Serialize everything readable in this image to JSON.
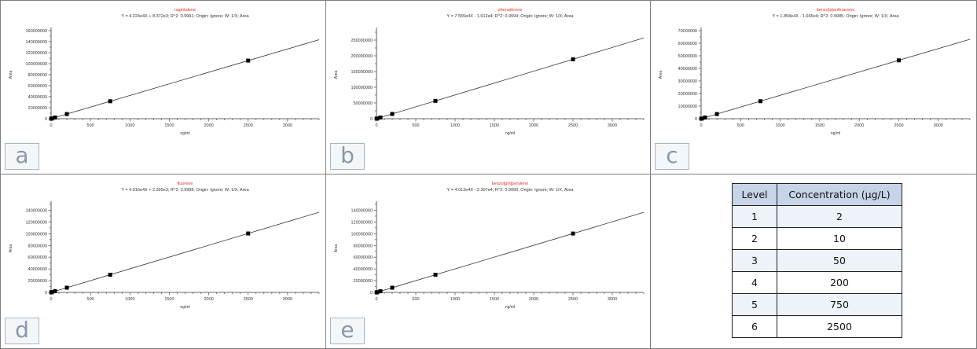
{
  "chart_data": [
    {
      "type": "scatter",
      "panel_letter": "a",
      "title": "naphtalene",
      "equation": "Y = 4.224e4X + 8.372e3; R^2: 0.9991; Origin: Ignore; W: 1/X; Area",
      "xlabel": "ng/ml",
      "ylabel": "Area",
      "xlim": [
        0,
        3400
      ],
      "ylim": [
        0,
        160000000
      ],
      "x_ticks": [
        0,
        500,
        1000,
        1500,
        2000,
        2500,
        3000
      ],
      "y_ticks": [
        0,
        20000000,
        40000000,
        60000000,
        80000000,
        100000000,
        120000000,
        140000000,
        160000000
      ],
      "y_tick_labels": [
        "0",
        "20000000",
        "40000000",
        "60000000",
        "80000000",
        "100000000",
        "120000000",
        "140000000",
        "160000000"
      ],
      "fit": {
        "slope": 42240,
        "intercept": 8372
      },
      "points": [
        [
          2,
          100000
        ],
        [
          10,
          430000
        ],
        [
          50,
          2120000
        ],
        [
          200,
          8450000
        ],
        [
          750,
          31700000
        ],
        [
          2500,
          105600000
        ]
      ]
    },
    {
      "type": "scatter",
      "panel_letter": "b",
      "title": "phenathrene",
      "equation": "Y = 7.555e4X - 1.612e4; R^2: 0.9994; Origin: Ignore; W: 1/X; Area",
      "xlabel": "ng/ml",
      "ylabel": "Area",
      "xlim": [
        0,
        3400
      ],
      "ylim": [
        0,
        280000000
      ],
      "x_ticks": [
        0,
        500,
        1000,
        1500,
        2000,
        2500,
        3000
      ],
      "y_ticks": [
        0,
        50000000,
        100000000,
        150000000,
        200000000,
        250000000
      ],
      "y_tick_labels": [
        "0",
        "50000000",
        "100000000",
        "150000000",
        "200000000",
        "250000000"
      ],
      "fit": {
        "slope": 75550,
        "intercept": -16120
      },
      "points": [
        [
          2,
          135000
        ],
        [
          10,
          740000
        ],
        [
          50,
          3760000
        ],
        [
          200,
          15100000
        ],
        [
          750,
          56600000
        ],
        [
          2500,
          188900000
        ]
      ]
    },
    {
      "type": "scatter",
      "panel_letter": "c",
      "title": "benzo[a]anthracene",
      "equation": "Y = 1.858e4X - 1.665e4; R^2: 0.9985; Origin: Ignore; W: 1/X; Area",
      "xlabel": "ng/ml",
      "ylabel": "Area",
      "xlim": [
        0,
        3400
      ],
      "ylim": [
        0,
        70000000
      ],
      "x_ticks": [
        0,
        500,
        1000,
        1500,
        2000,
        2500,
        3000
      ],
      "y_ticks": [
        0,
        10000000,
        20000000,
        30000000,
        40000000,
        50000000,
        60000000,
        70000000
      ],
      "y_tick_labels": [
        "0",
        "10000000",
        "20000000",
        "30000000",
        "40000000",
        "50000000",
        "60000000",
        "70000000"
      ],
      "fit": {
        "slope": 18580,
        "intercept": -16650
      },
      "points": [
        [
          2,
          20000
        ],
        [
          10,
          169000
        ],
        [
          50,
          912000
        ],
        [
          200,
          3700000
        ],
        [
          750,
          13900000
        ],
        [
          2500,
          46400000
        ]
      ]
    },
    {
      "type": "scatter",
      "panel_letter": "d",
      "title": "fluorene",
      "equation": "Y = 4.016e4X + 2.395e3; R^2: 0.9998; Origin: Ignore; W: 1/X; Area",
      "xlabel": "ng/ml",
      "ylabel": "Area",
      "xlim": [
        0,
        3400
      ],
      "ylim": [
        0,
        150000000
      ],
      "x_ticks": [
        0,
        500,
        1000,
        1500,
        2000,
        2500,
        3000
      ],
      "y_ticks": [
        0,
        20000000,
        40000000,
        60000000,
        80000000,
        100000000,
        120000000,
        140000000
      ],
      "y_tick_labels": [
        "0",
        "20000000",
        "40000000",
        "60000000",
        "80000000",
        "100000000",
        "120000000",
        "140000000"
      ],
      "fit": {
        "slope": 40160,
        "intercept": 2395
      },
      "points": [
        [
          2,
          83000
        ],
        [
          10,
          404000
        ],
        [
          50,
          2010000
        ],
        [
          200,
          8030000
        ],
        [
          750,
          30100000
        ],
        [
          2500,
          100400000
        ]
      ]
    },
    {
      "type": "scatter",
      "panel_letter": "e",
      "title": "benzo[ghi]perylene",
      "equation": "Y = 4.012e4X - 2.307e4; R^2: 0.9993; Origin: Ignore; W: 1/X; Area",
      "xlabel": "ng/ml",
      "ylabel": "Area",
      "xlim": [
        0,
        3400
      ],
      "ylim": [
        0,
        150000000
      ],
      "x_ticks": [
        0,
        500,
        1000,
        1500,
        2000,
        2500,
        3000
      ],
      "y_ticks": [
        0,
        20000000,
        40000000,
        60000000,
        80000000,
        100000000,
        120000000,
        140000000
      ],
      "y_tick_labels": [
        "0",
        "20000000",
        "40000000",
        "60000000",
        "80000000",
        "100000000",
        "120000000",
        "140000000"
      ],
      "fit": {
        "slope": 40120,
        "intercept": -23070
      },
      "points": [
        [
          2,
          57000
        ],
        [
          10,
          378000
        ],
        [
          50,
          1980000
        ],
        [
          200,
          8000000
        ],
        [
          750,
          30100000
        ],
        [
          2500,
          100300000
        ]
      ]
    },
    {
      "type": "table",
      "columns": [
        "Level",
        "Concentration (µg/L)"
      ],
      "rows": [
        [
          "1",
          "2"
        ],
        [
          "2",
          "10"
        ],
        [
          "3",
          "50"
        ],
        [
          "4",
          "200"
        ],
        [
          "5",
          "750"
        ],
        [
          "6",
          "2500"
        ]
      ]
    }
  ],
  "colors": {
    "title": "#e8322a",
    "line": "#333333",
    "marker": "#000000",
    "table_header": "#c7d3e8",
    "table_row_shaded": "#eef3f9",
    "letter_box_border": "#a8b6c6",
    "letter_text": "#8a98a8"
  }
}
